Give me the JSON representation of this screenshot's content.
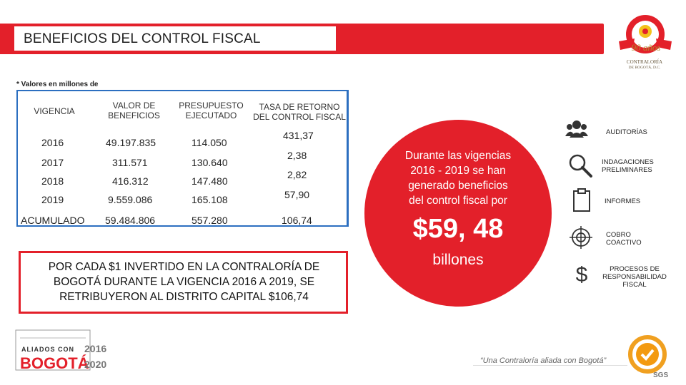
{
  "header": {
    "title": "BENEFICIOS DEL CONTROL FISCAL",
    "logo_text_line1": "CONTRALORÍA",
    "logo_text_line2": "DE BOGOTÁ, D.C."
  },
  "note": "* Valores en millones de",
  "table": {
    "headers": [
      "VIGENCIA",
      "VALOR DE\nBENEFICIOS",
      "PRESUPUESTO\nEJECUTADO",
      "TASA DE RETORNO\nDEL CONTROL FISCAL"
    ],
    "rows": [
      [
        "2016",
        "49.197.835",
        "114.050",
        "431,37"
      ],
      [
        "2017",
        "311.571",
        "130.640",
        "2,38"
      ],
      [
        "2018",
        "416.312",
        "147.480",
        "2,82"
      ],
      [
        "2019",
        "9.559.086",
        "165.108",
        "57,90"
      ],
      [
        "ACUMULADO",
        "59.484.806",
        "557.280",
        "106,74"
      ]
    ]
  },
  "highlight": {
    "line1": "POR CADA $1 INVERTIDO EN LA CONTRALORÍA DE",
    "line2": "BOGOTÁ DURANTE LA VIGENCIA 2016 A 2019, SE",
    "line3": "RETRIBUYERON AL DISTRITO CAPITAL $106,74"
  },
  "circle": {
    "line1": "Durante las vigencias",
    "line2": "2016 - 2019 se han",
    "line3": "generado beneficios",
    "line4": "del control fiscal por",
    "amount": "$59, 48",
    "unit": "billones"
  },
  "side_items": [
    {
      "icon": "people-icon",
      "label": "AUDITORÍAS"
    },
    {
      "icon": "magnifier-icon",
      "label": "INDAGACIONES\nPRELIMINARES"
    },
    {
      "icon": "clipboard-icon",
      "label": "INFORMES"
    },
    {
      "icon": "target-icon",
      "label": "COBRO\nCOACTIVO"
    },
    {
      "icon": "dollar-icon",
      "label": "PROCESOS DE\nRESPONSABILIDAD\nFISCAL"
    }
  ],
  "footer": {
    "slogan": "“Una Contraloría aliada con Bogotá”",
    "logo_small": "ALIADOS CON",
    "logo_big": "BOGOTÁ",
    "year1": "2016",
    "year2": "2020",
    "cert": "SGS"
  },
  "colors": {
    "accent": "#e3202a",
    "table_border": "#2c6fc0"
  }
}
